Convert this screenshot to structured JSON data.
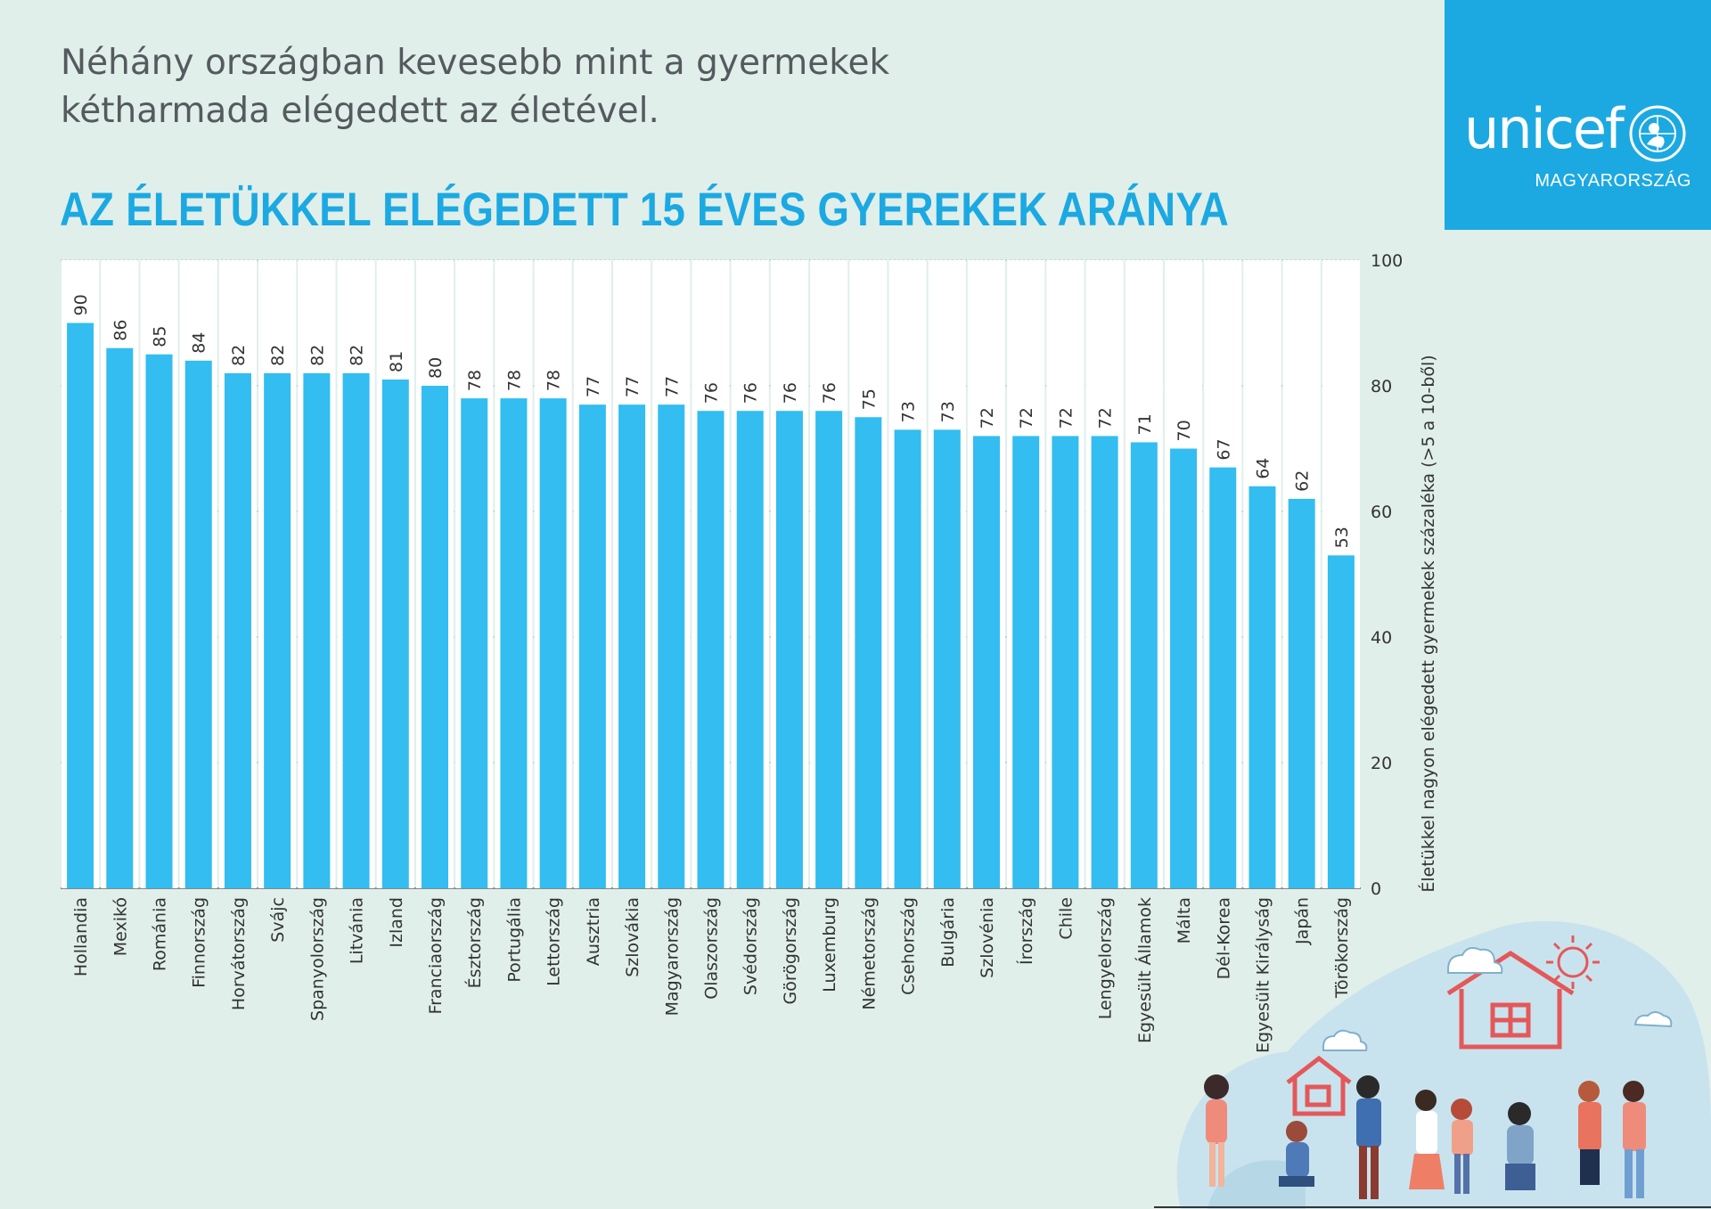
{
  "header": {
    "subtitle": "Néhány országban kevesebb mint a gyermekek kétharmada elégedett az életével.",
    "title": "AZ ÉLETÜKKEL ELÉGEDETT 15 ÉVES GYEREKEK ARÁNYA"
  },
  "logo": {
    "wordmark": "unicef",
    "country": "MAGYARORSZÁG",
    "emblem_icon": "unicef-emblem-icon"
  },
  "colors": {
    "background": "#e0efea",
    "accent": "#1ca9e2",
    "bar": "#33bdf1"
  },
  "illustration": {
    "icon": "children-playing-illustration"
  },
  "chart_data": {
    "type": "bar",
    "title": "AZ ÉLETÜKKEL ELÉGEDETT 15 ÉVES GYEREKEK ARÁNYA",
    "ylabel": "Életükkel nagyon elégedett gyermekek százaléka (>5 a 10-ből)",
    "xlabel": "",
    "ylim": [
      0,
      100
    ],
    "yticks": [
      0,
      20,
      40,
      60,
      80,
      100
    ],
    "y_axis_side": "right",
    "grid": true,
    "categories": [
      "Hollandia",
      "Mexikó",
      "Románia",
      "Finnország",
      "Horvátország",
      "Svájc",
      "Spanyolország",
      "Litvánia",
      "Izland",
      "Franciaország",
      "Észtország",
      "Portugália",
      "Lettország",
      "Ausztria",
      "Szlovákia",
      "Magyarország",
      "Olaszország",
      "Svédország",
      "Görögország",
      "Luxemburg",
      "Németország",
      "Csehország",
      "Bulgária",
      "Szlovénia",
      "Írország",
      "Chile",
      "Lengyelország",
      "Egyesült Államok",
      "Málta",
      "Dél-Korea",
      "Egyesült Királyság",
      "Japán",
      "Törökország"
    ],
    "values": [
      90,
      86,
      85,
      84,
      82,
      82,
      82,
      82,
      81,
      80,
      78,
      78,
      78,
      77,
      77,
      77,
      76,
      76,
      76,
      76,
      75,
      73,
      73,
      72,
      72,
      72,
      72,
      71,
      70,
      67,
      64,
      62,
      53
    ]
  }
}
